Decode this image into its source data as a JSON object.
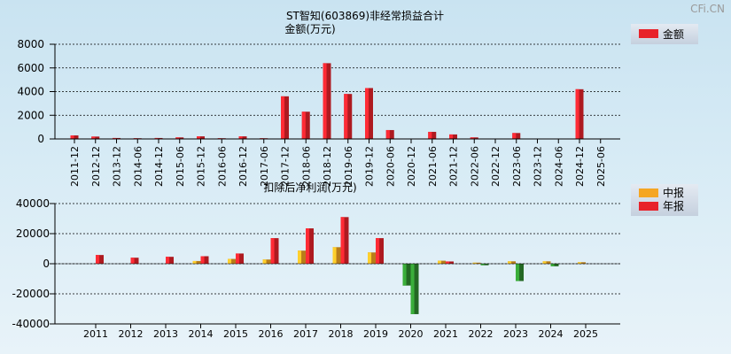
{
  "watermark": "CFi.CN",
  "chart_data": [
    {
      "type": "bar",
      "title": "ST智知(603869)非经常损益合计",
      "ylabel": "金额(万元)",
      "legend": [
        "金额"
      ],
      "legend_position": "top-right",
      "ylim": [
        0,
        8000
      ],
      "yticks": [
        0,
        2000,
        4000,
        6000,
        8000
      ],
      "grid": true,
      "color": "#e8222a",
      "categories": [
        "2011-12",
        "2012-12",
        "2013-12",
        "2014-06",
        "2014-12",
        "2015-06",
        "2015-12",
        "2016-06",
        "2016-12",
        "2017-06",
        "2017-12",
        "2018-06",
        "2018-12",
        "2019-06",
        "2019-12",
        "2020-06",
        "2020-12",
        "2021-06",
        "2021-12",
        "2022-06",
        "2022-12",
        "2023-06",
        "2023-12",
        "2024-06",
        "2024-12",
        "2025-06"
      ],
      "values": [
        300,
        200,
        80,
        60,
        80,
        130,
        220,
        60,
        220,
        60,
        3600,
        2300,
        6400,
        3800,
        4300,
        750,
        0,
        600,
        380,
        130,
        0,
        500,
        0,
        0,
        4200,
        0
      ]
    },
    {
      "type": "bar",
      "title": "扣除后净利润(万元)",
      "legend_position": "top-right",
      "ylim": [
        -40000,
        40000
      ],
      "yticks": [
        -40000,
        -20000,
        0,
        20000,
        40000
      ],
      "grid": true,
      "categories": [
        "2011",
        "2012",
        "2013",
        "2014",
        "2015",
        "2016",
        "2017",
        "2018",
        "2019",
        "2020",
        "2021",
        "2022",
        "2023",
        "2024",
        "2025"
      ],
      "series": [
        {
          "name": "中报",
          "color": "#f5a623",
          "neg_color": "#2e8b2e",
          "values": [
            null,
            null,
            null,
            1800,
            3200,
            2800,
            8700,
            11000,
            7500,
            -14500,
            2000,
            700,
            1600,
            1600,
            1000
          ]
        },
        {
          "name": "年报",
          "color": "#e8222a",
          "neg_color": "#2e8b2e",
          "values": [
            5800,
            4000,
            4600,
            5000,
            6800,
            17000,
            23500,
            31000,
            17000,
            -33500,
            1500,
            -1000,
            -11500,
            -1700,
            null
          ]
        }
      ]
    }
  ]
}
